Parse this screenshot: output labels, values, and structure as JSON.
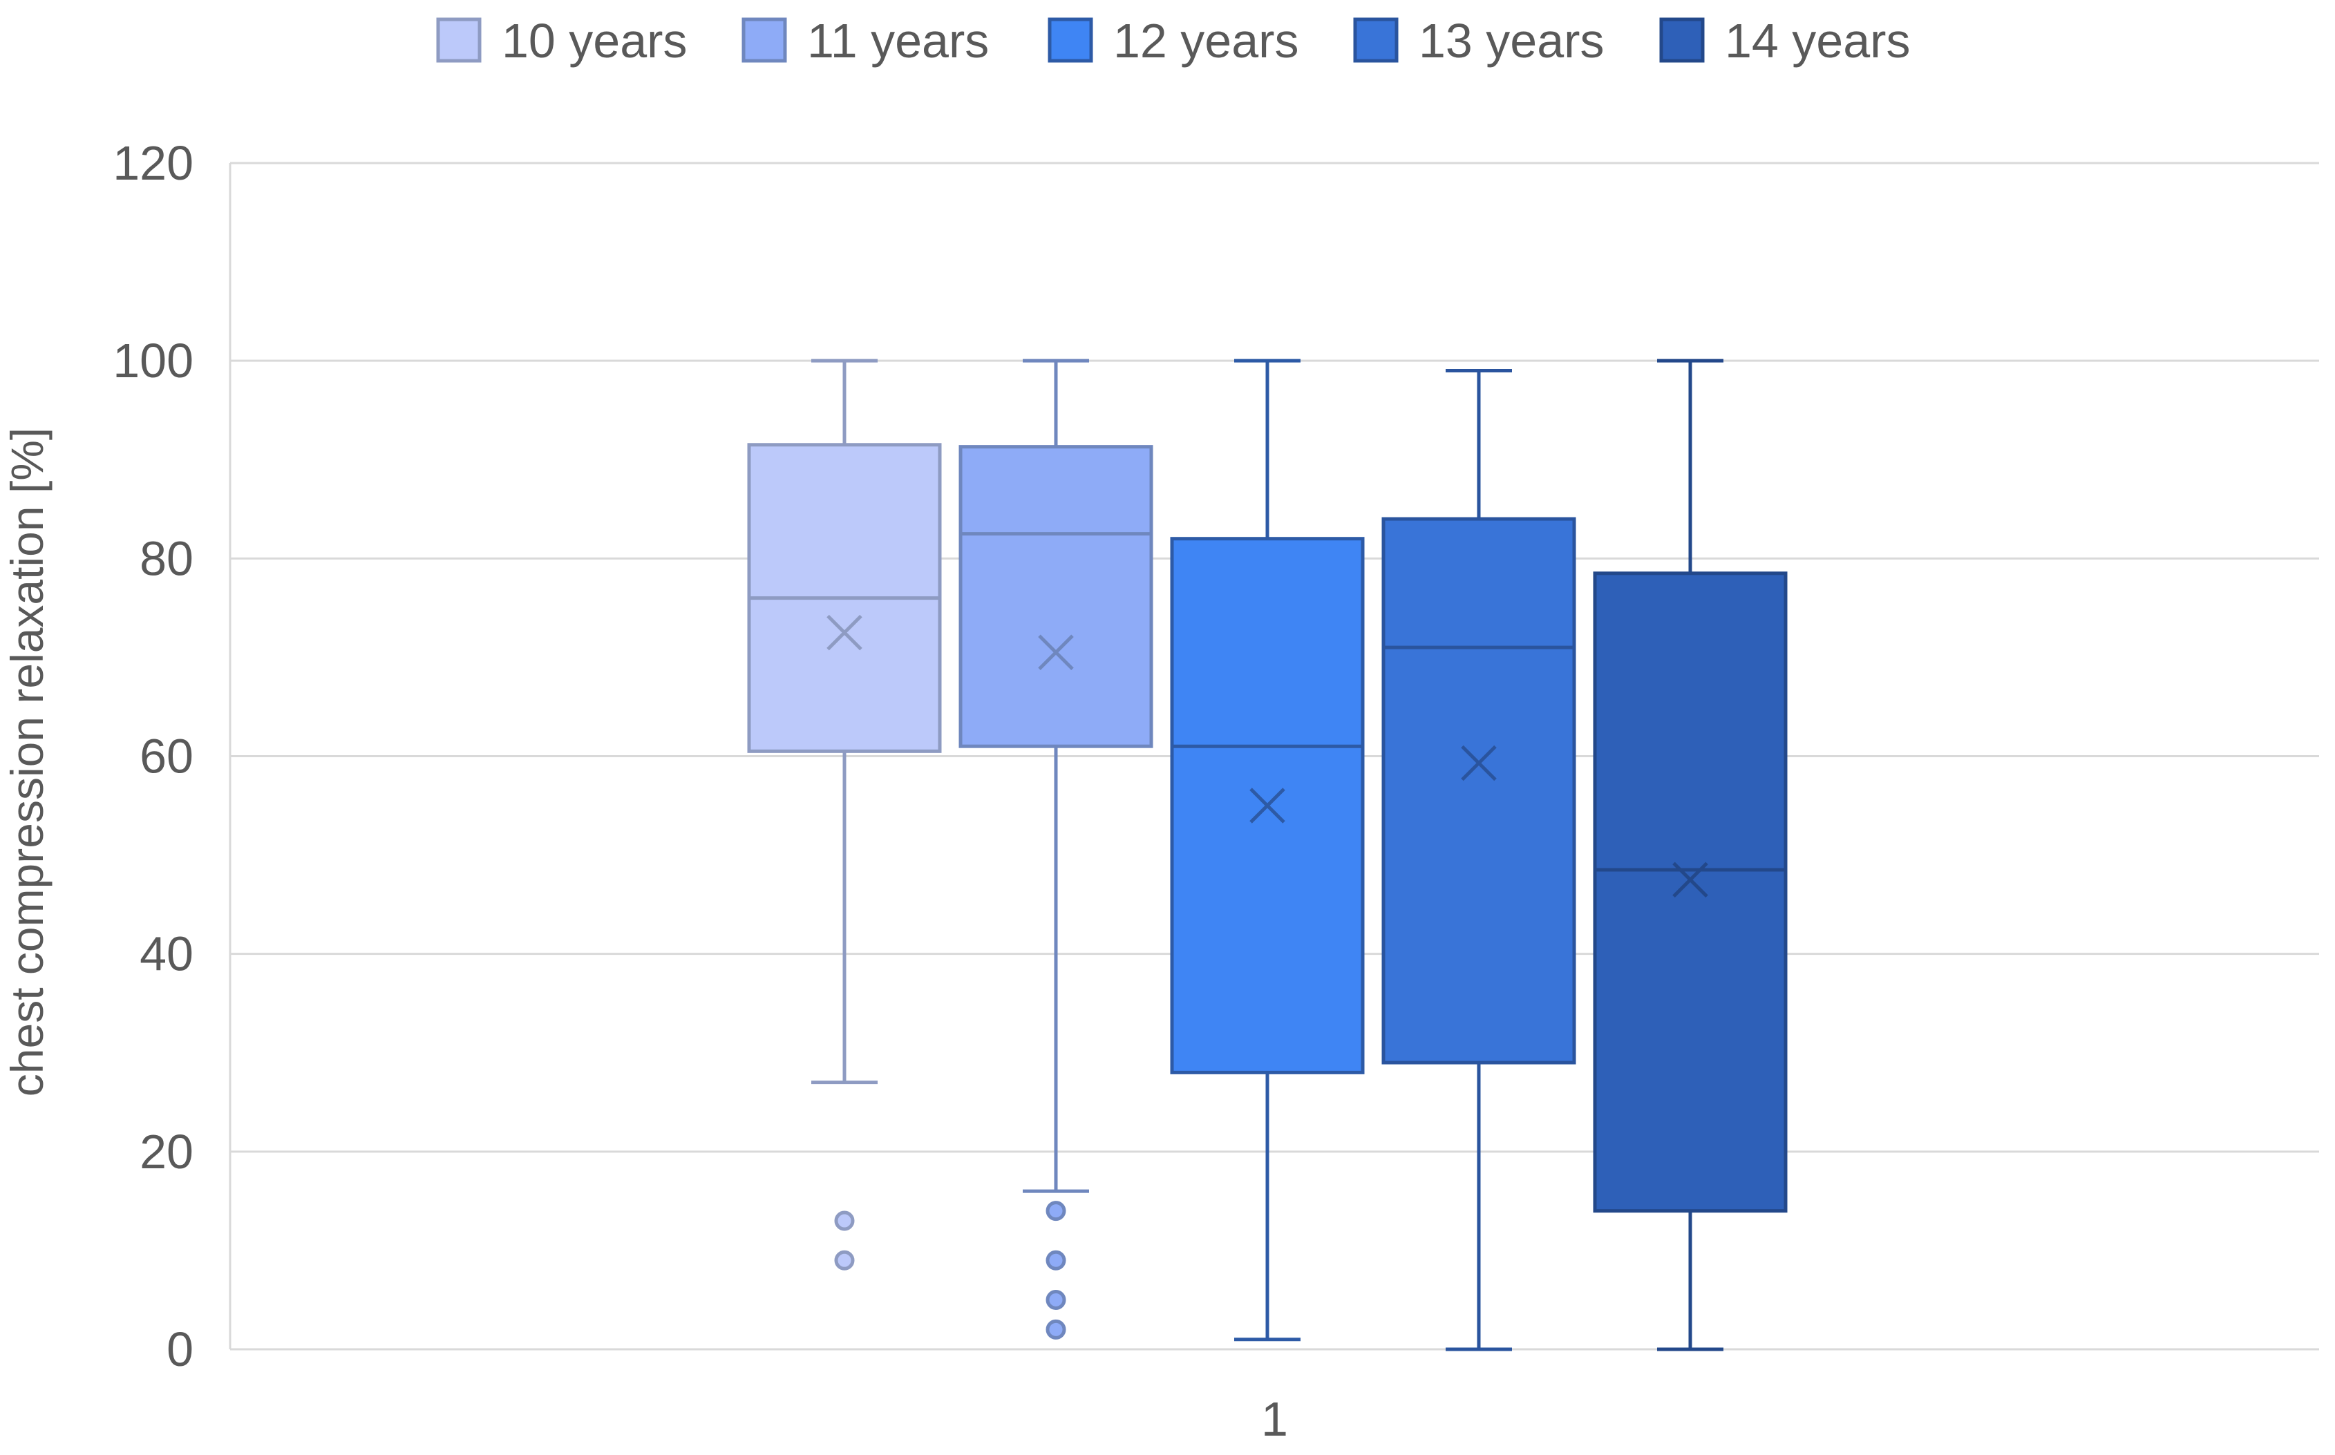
{
  "chart_data": {
    "type": "boxplot",
    "title": "",
    "xlabel": "",
    "ylabel": "chest compression relaxation [%]",
    "ylim": [
      0,
      120
    ],
    "yticks": [
      "0",
      "20",
      "40",
      "60",
      "80",
      "100",
      "120"
    ],
    "categories": [
      "1"
    ],
    "grid": true,
    "legend_position": "top",
    "series": [
      {
        "name": "10 years",
        "color": "#bcc9fa",
        "stroke": "#8e9bc2",
        "min": 27,
        "q1": 60.5,
        "median": 76,
        "q3": 91.5,
        "max": 100,
        "mean": 72.5,
        "outliers": [
          13,
          9
        ]
      },
      {
        "name": "11 years",
        "color": "#8eabf7",
        "stroke": "#6f87be",
        "min": 16,
        "q1": 61,
        "median": 82.5,
        "q3": 91.3,
        "max": 100,
        "mean": 70.5,
        "outliers": [
          14,
          9,
          5,
          2
        ]
      },
      {
        "name": "12 years",
        "color": "#3f85f4",
        "stroke": "#2d5aa6",
        "min": 1,
        "q1": 28,
        "median": 61,
        "q3": 82,
        "max": 100,
        "mean": 55,
        "outliers": []
      },
      {
        "name": "13 years",
        "color": "#3974d8",
        "stroke": "#2a549e",
        "min": 0,
        "q1": 29,
        "median": 71,
        "q3": 84,
        "max": 99,
        "mean": 59.3,
        "outliers": []
      },
      {
        "name": "14 years",
        "color": "#2e60b8",
        "stroke": "#23488a",
        "min": 0,
        "q1": 14,
        "median": 48.5,
        "q3": 78.5,
        "max": 100,
        "mean": 47.5,
        "outliers": []
      }
    ]
  }
}
